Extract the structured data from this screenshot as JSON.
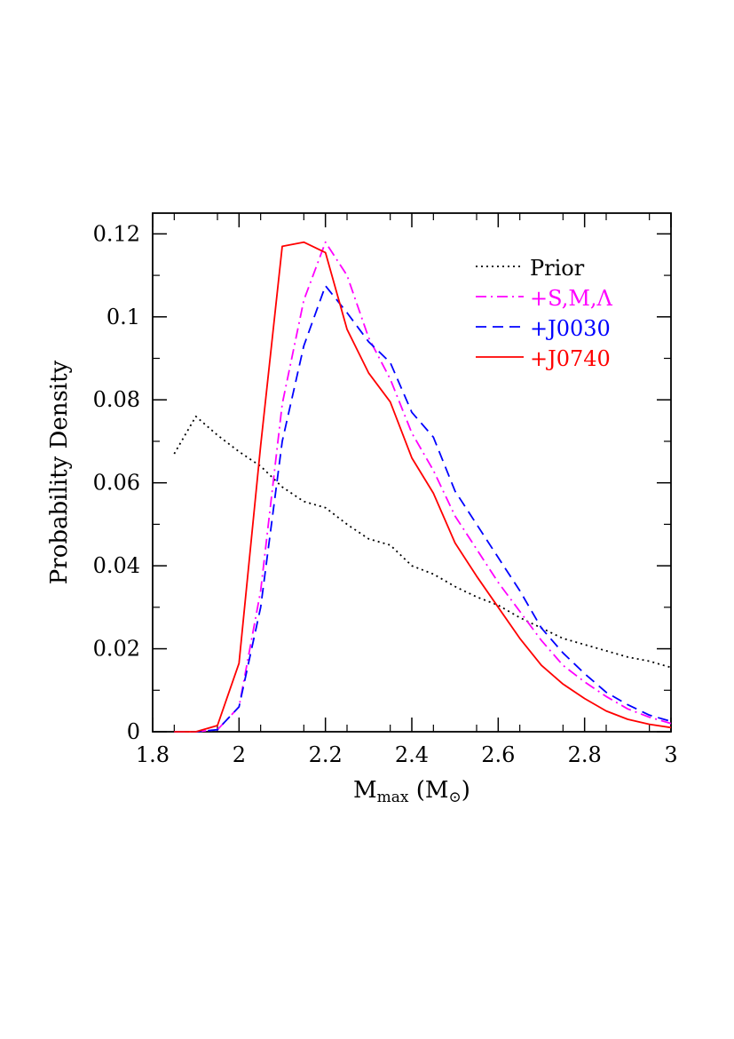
{
  "chart_data": {
    "type": "line",
    "xlabel": "M",
    "xlabel_sub": "max",
    "xlabel_unit_open": " (M",
    "xlabel_unit_sub": "⊙",
    "xlabel_unit_close": ")",
    "ylabel": "Probability Density",
    "xlim": [
      1.8,
      3.0
    ],
    "ylim": [
      0,
      0.125
    ],
    "xticks": [
      "1.8",
      "2",
      "2.2",
      "2.4",
      "2.6",
      "2.8",
      "3"
    ],
    "xtick_values": [
      1.8,
      2.0,
      2.2,
      2.4,
      2.6,
      2.8,
      3.0
    ],
    "yticks": [
      "0",
      "0.02",
      "0.04",
      "0.06",
      "0.08",
      "0.1",
      "0.12"
    ],
    "ytick_values": [
      0,
      0.02,
      0.04,
      0.06,
      0.08,
      0.1,
      0.12
    ],
    "grid": false,
    "legend_position": "top-right",
    "series": [
      {
        "name": "Prior",
        "color": "#000000",
        "style": "dotted",
        "x": [
          1.85,
          1.9,
          1.95,
          2.0,
          2.05,
          2.1,
          2.15,
          2.2,
          2.25,
          2.3,
          2.35,
          2.4,
          2.45,
          2.5,
          2.55,
          2.6,
          2.65,
          2.7,
          2.75,
          2.8,
          2.85,
          2.9,
          2.95,
          3.0
        ],
        "values": [
          0.067,
          0.076,
          0.0715,
          0.0675,
          0.064,
          0.059,
          0.0555,
          0.054,
          0.05,
          0.0465,
          0.045,
          0.04,
          0.038,
          0.035,
          0.0325,
          0.0305,
          0.0275,
          0.025,
          0.0225,
          0.021,
          0.0195,
          0.018,
          0.017,
          0.0155
        ]
      },
      {
        "name": "+S,M,Λ",
        "color": "#ff00ff",
        "style": "dashdot",
        "x": [
          1.85,
          1.9,
          1.95,
          2.0,
          2.05,
          2.1,
          2.15,
          2.2,
          2.25,
          2.3,
          2.35,
          2.4,
          2.45,
          2.5,
          2.55,
          2.6,
          2.65,
          2.7,
          2.75,
          2.8,
          2.85,
          2.9,
          2.95,
          3.0
        ],
        "values": [
          0,
          0,
          0.0005,
          0.006,
          0.034,
          0.079,
          0.104,
          0.118,
          0.11,
          0.095,
          0.085,
          0.072,
          0.063,
          0.052,
          0.044,
          0.036,
          0.029,
          0.022,
          0.016,
          0.012,
          0.0085,
          0.0055,
          0.0035,
          0.002
        ]
      },
      {
        "name": "+J0030",
        "color": "#0000ff",
        "style": "dashed",
        "x": [
          1.85,
          1.9,
          1.95,
          2.0,
          2.05,
          2.1,
          2.15,
          2.2,
          2.25,
          2.3,
          2.35,
          2.4,
          2.45,
          2.5,
          2.55,
          2.6,
          2.65,
          2.7,
          2.75,
          2.8,
          2.85,
          2.9,
          2.95,
          3.0
        ],
        "values": [
          0,
          0,
          0.0005,
          0.006,
          0.03,
          0.07,
          0.093,
          0.1075,
          0.101,
          0.094,
          0.089,
          0.077,
          0.071,
          0.058,
          0.05,
          0.042,
          0.034,
          0.025,
          0.019,
          0.014,
          0.0095,
          0.0065,
          0.004,
          0.0025
        ]
      },
      {
        "name": "+J0740",
        "color": "#ff0000",
        "style": "solid",
        "x": [
          1.85,
          1.9,
          1.95,
          2.0,
          2.05,
          2.1,
          2.15,
          2.2,
          2.25,
          2.3,
          2.35,
          2.4,
          2.45,
          2.5,
          2.55,
          2.6,
          2.65,
          2.7,
          2.75,
          2.8,
          2.85,
          2.9,
          2.95,
          3.0
        ],
        "values": [
          0,
          0,
          0.0015,
          0.0165,
          0.069,
          0.117,
          0.118,
          0.1155,
          0.097,
          0.0865,
          0.0795,
          0.066,
          0.0575,
          0.0455,
          0.0375,
          0.03,
          0.0225,
          0.016,
          0.0115,
          0.008,
          0.005,
          0.003,
          0.0018,
          0.001
        ]
      }
    ]
  }
}
